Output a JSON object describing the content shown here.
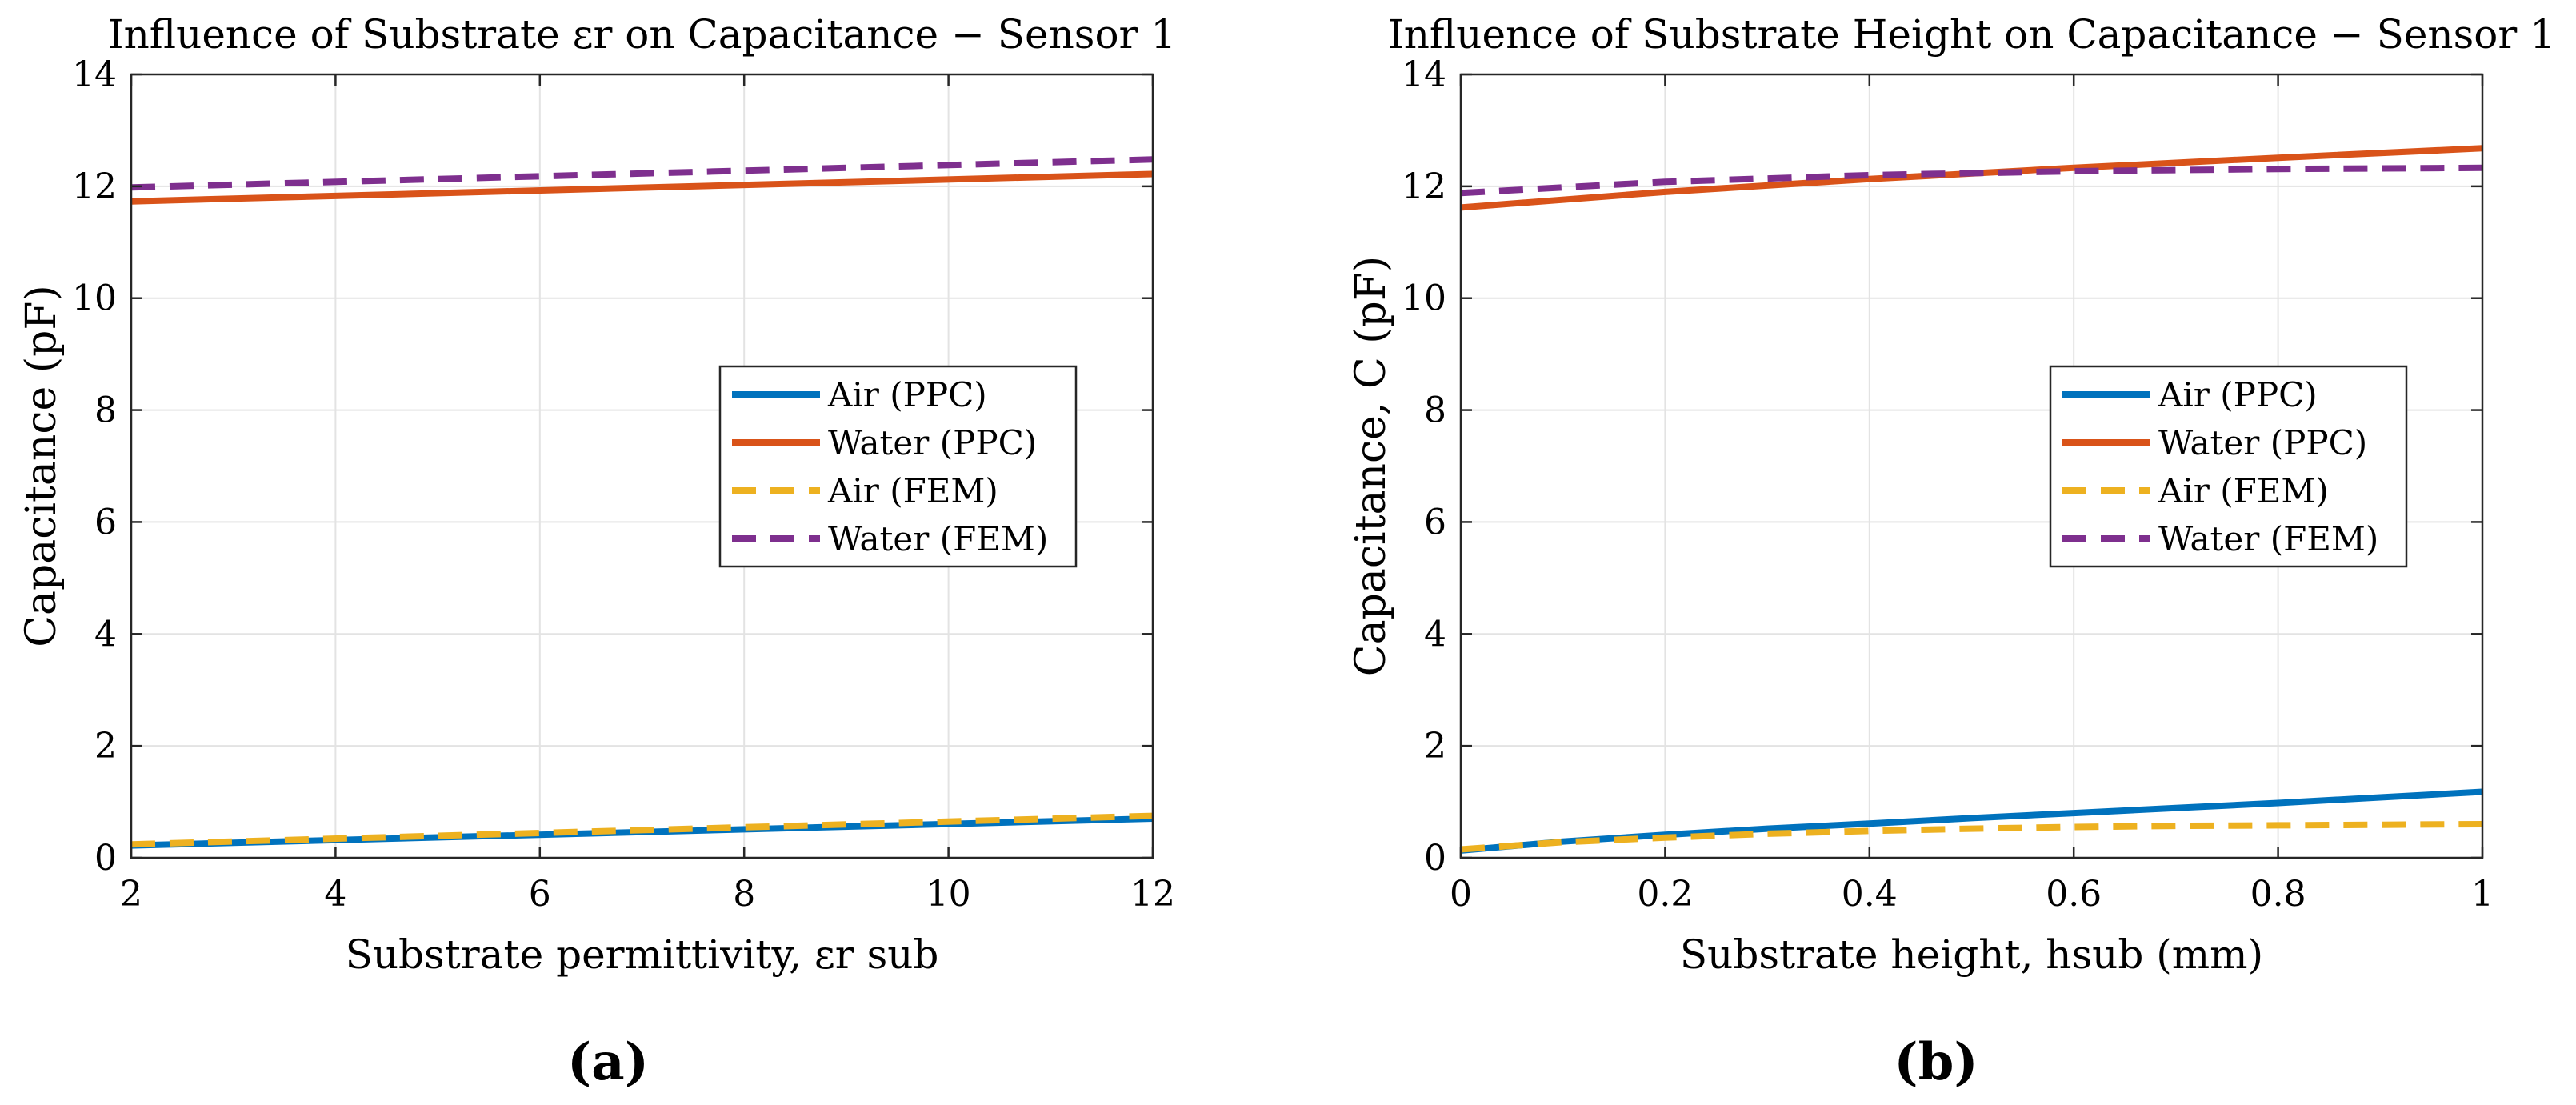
{
  "chart_data": [
    {
      "type": "line",
      "title": "Influence of Substrate εr on Capacitance − Sensor 1",
      "xlabel": "Substrate permittivity, εr sub",
      "ylabel": "Capacitance (pF)",
      "xlim": [
        2,
        12
      ],
      "ylim": [
        0,
        14
      ],
      "xticks": [
        2,
        4,
        6,
        8,
        10,
        12
      ],
      "yticks": [
        0,
        2,
        4,
        6,
        8,
        10,
        12,
        14
      ],
      "xtick_labels": [
        "2",
        "4",
        "6",
        "8",
        "10",
        "12"
      ],
      "ytick_labels": [
        "0",
        "2",
        "4",
        "6",
        "8",
        "10",
        "12",
        "14"
      ],
      "grid": true,
      "legend": "center-right",
      "series": [
        {
          "name": "Air (PPC)",
          "color": "#0072BD",
          "style": "solid",
          "x": [
            2,
            12
          ],
          "y": [
            0.22,
            0.7
          ]
        },
        {
          "name": "Water (PPC)",
          "color": "#D95319",
          "style": "solid",
          "x": [
            2,
            12
          ],
          "y": [
            11.73,
            12.22
          ]
        },
        {
          "name": "Air (FEM)",
          "color": "#EDB120",
          "style": "dashed",
          "x": [
            2,
            12
          ],
          "y": [
            0.24,
            0.75
          ]
        },
        {
          "name": "Water (FEM)",
          "color": "#7E2F8E",
          "style": "dashed",
          "x": [
            2,
            12
          ],
          "y": [
            11.98,
            12.48
          ]
        }
      ],
      "caption": "(a)"
    },
    {
      "type": "line",
      "title": "Influence of Substrate Height on Capacitance − Sensor 1",
      "xlabel": "Substrate height, hsub (mm)",
      "ylabel": "Capacitance, C (pF)",
      "xlim": [
        0,
        1
      ],
      "ylim": [
        0,
        14
      ],
      "xticks": [
        0,
        0.2,
        0.4,
        0.6,
        0.8,
        1
      ],
      "yticks": [
        0,
        2,
        4,
        6,
        8,
        10,
        12,
        14
      ],
      "xtick_labels": [
        "0",
        "0.2",
        "0.4",
        "0.6",
        "0.8",
        "1"
      ],
      "ytick_labels": [
        "0",
        "2",
        "4",
        "6",
        "8",
        "10",
        "12",
        "14"
      ],
      "grid": true,
      "legend": "center-right",
      "series": [
        {
          "name": "Air (PPC)",
          "color": "#0072BD",
          "style": "solid",
          "x": [
            0,
            0.1,
            0.2,
            0.3,
            0.4,
            0.5,
            0.6,
            0.7,
            0.8,
            0.9,
            1.0
          ],
          "y": [
            0.13,
            0.29,
            0.41,
            0.52,
            0.61,
            0.71,
            0.8,
            0.89,
            0.98,
            1.08,
            1.18
          ]
        },
        {
          "name": "Water (PPC)",
          "color": "#D95319",
          "style": "solid",
          "x": [
            0,
            0.2,
            0.4,
            0.6,
            0.8,
            1.0
          ],
          "y": [
            11.62,
            11.9,
            12.13,
            12.33,
            12.51,
            12.68
          ]
        },
        {
          "name": "Air (FEM)",
          "color": "#EDB120",
          "style": "dashed",
          "x": [
            0,
            0.1,
            0.2,
            0.3,
            0.4,
            0.5,
            0.6,
            0.7,
            0.8,
            0.9,
            1.0
          ],
          "y": [
            0.15,
            0.28,
            0.36,
            0.43,
            0.48,
            0.52,
            0.55,
            0.57,
            0.58,
            0.59,
            0.6
          ]
        },
        {
          "name": "Water (FEM)",
          "color": "#7E2F8E",
          "style": "dashed",
          "x": [
            0,
            0.2,
            0.4,
            0.6,
            0.8,
            1.0
          ],
          "y": [
            11.88,
            12.08,
            12.2,
            12.27,
            12.31,
            12.33
          ]
        }
      ],
      "caption": "(b)"
    }
  ]
}
